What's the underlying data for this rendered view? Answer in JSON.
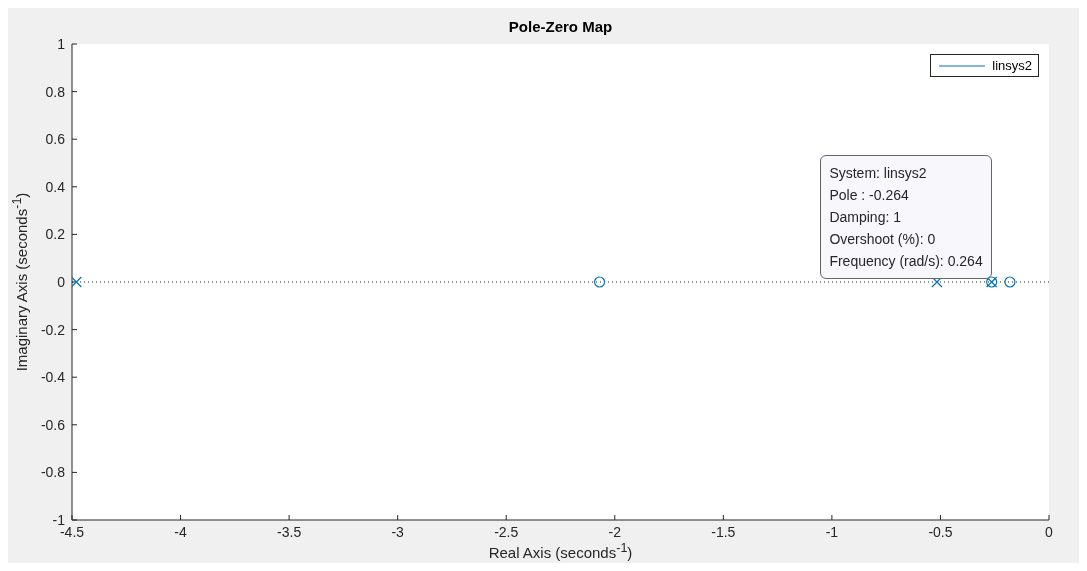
{
  "chart_data": {
    "type": "scatter",
    "title": "Pole-Zero Map",
    "xlabel": "Real Axis (seconds$^{-1}$)",
    "ylabel": "Imaginary Axis (seconds$^{-1}$)",
    "series": [
      {
        "name": "linsys2",
        "color": "#0072bd",
        "marker": "cross",
        "x": [
          -4.48,
          -0.516,
          -0.264
        ],
        "values": [
          0,
          0,
          0
        ]
      },
      {
        "color": "#0072bd",
        "marker": "circle",
        "x": [
          -2.07,
          -0.264,
          -0.18
        ],
        "values": [
          0,
          0,
          0
        ]
      }
    ],
    "xlim": [
      -4.5,
      0
    ],
    "xticks": [
      -4.5,
      -4,
      -3.5,
      -3,
      -2.5,
      -2,
      -1.5,
      -1,
      -0.5,
      0
    ],
    "ylim": [
      -1,
      1
    ],
    "yticks": [
      -1,
      -0.8,
      -0.6,
      -0.4,
      -0.2,
      0,
      0.2,
      0.4,
      0.6,
      0.8,
      1
    ],
    "ref_lines": [
      {
        "axis": "y",
        "value": 0,
        "line_style": "dotted",
        "color": "#262626"
      }
    ],
    "annotations": [
      {
        "text": "System: linsys2\nPole : -0.264\nDamping: 1\nOvershoot (%): 0\nFrequency (rad/s): 0.264",
        "x": -0.264,
        "y": 0
      }
    ],
    "legend": "top right",
    "grid": false
  }
}
